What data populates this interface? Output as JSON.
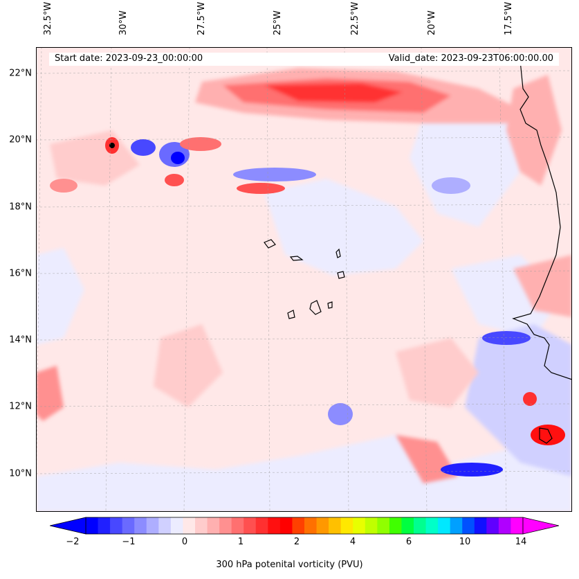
{
  "map": {
    "start_date": "Start date: 2023-09-23_00:00:00",
    "valid_date": "Valid_date: 2023-09-23T06:00:00.00",
    "longitude_labels": [
      "32.5°W",
      "30°W",
      "27.5°W",
      "25°W",
      "22.5°W",
      "20°W",
      "17.5°W"
    ],
    "latitude_labels": [
      "22°N",
      "20°N",
      "18°N",
      "16°N",
      "14°N",
      "12°N",
      "10°N"
    ],
    "gridlines": true
  },
  "colorbar": {
    "label": "300 hPa potenital vorticity (PVU)",
    "tick_labels": [
      "−2",
      "−1",
      "0",
      "1",
      "2",
      "4",
      "6",
      "10",
      "14"
    ],
    "colors": [
      "#0000ff",
      "#2020ff",
      "#4848ff",
      "#6a6aff",
      "#8c8cff",
      "#aeaeff",
      "#d0d0ff",
      "#ececff",
      "#ffe8e8",
      "#ffcccc",
      "#ffb0b0",
      "#ff9090",
      "#ff7070",
      "#ff5050",
      "#ff3030",
      "#ff1010",
      "#ff0000",
      "#ff4000",
      "#ff7000",
      "#ff9800",
      "#ffc000",
      "#ffe800",
      "#e8ff00",
      "#c0ff00",
      "#90ff00",
      "#40ff00",
      "#00ff40",
      "#00ff90",
      "#00ffc8",
      "#00e8ff",
      "#00a0ff",
      "#0050ff",
      "#1010ff",
      "#6000ff",
      "#b000ff",
      "#ff00ff"
    ]
  }
}
